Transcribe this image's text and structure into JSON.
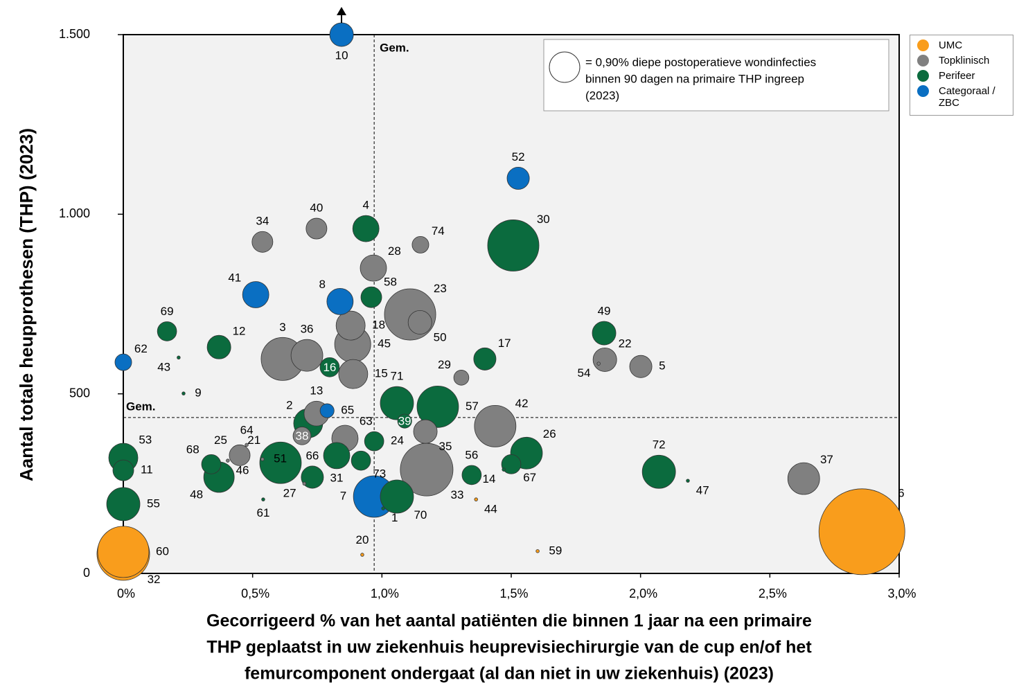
{
  "chart_data": {
    "type": "bubble",
    "xlabel": [
      "Gecorrigeerd % van het aantal patiënten die binnen 1 jaar na een primaire",
      "THP geplaatst in uw ziekenhuis heuprevisiechirurgie van de cup en/of het",
      "femurcomponent ondergaat (al dan niet in uw ziekenhuis) (2023)"
    ],
    "ylabel": "Aantal totale heupprothesen (THP) (2023)",
    "xlim": [
      0,
      3.0
    ],
    "ylim": [
      0,
      1500
    ],
    "xticks": [
      {
        "value": 0,
        "label": "0%"
      },
      {
        "value": 0.5,
        "label": "0,5%"
      },
      {
        "value": 1.0,
        "label": "1,0%"
      },
      {
        "value": 1.5,
        "label": "1,5%"
      },
      {
        "value": 2.0,
        "label": "2,0%"
      },
      {
        "value": 2.5,
        "label": "2,5%"
      },
      {
        "value": 3.0,
        "label": "3,0%"
      }
    ],
    "yticks": [
      0,
      500,
      {
        "value": 1000,
        "label": "1.000"
      },
      {
        "value": 1500,
        "label": "1.500"
      }
    ],
    "mean_x": 0.97,
    "mean_y": 434,
    "mean_label": "Gem.",
    "size_legend": {
      "value": 0.9,
      "text": [
        "= 0,90% diepe postoperatieve wondinfecties",
        "binnen 90 dagen na primaire THP ingreep",
        "(2023)"
      ]
    },
    "series": [
      {
        "name": "UMC",
        "color": "#f99d1c",
        "labels": [
          "6",
          "60",
          "32",
          "20",
          "59",
          "44"
        ],
        "x": [
          2.856,
          0,
          0,
          0.924,
          1.602,
          1.364
        ],
        "y": [
          116,
          60,
          54,
          52,
          62,
          206
        ],
        "sizes": [
          7.15,
          2.55,
          2.69,
          0.01,
          0.01,
          0.01
        ]
      },
      {
        "name": "Topklinisch",
        "color": "#808080",
        "labels": [
          "40",
          "34",
          "74",
          "28",
          "23",
          "50",
          "18",
          "45",
          "3",
          "36",
          "15",
          "29",
          "13",
          "42",
          "35",
          "63",
          "38",
          "25",
          "33",
          "37",
          "22",
          "5",
          "54",
          "64",
          "51",
          "27",
          "46"
        ],
        "x": [
          0.747,
          0.538,
          1.149,
          0.967,
          1.109,
          1.147,
          0.879,
          0.887,
          0.616,
          0.71,
          0.889,
          1.307,
          0.747,
          1.438,
          1.168,
          0.857,
          0.691,
          0.45,
          1.173,
          2.631,
          1.862,
          2.001,
          1.838,
          0.477,
          0.538,
          0.7,
          0.404
        ],
        "y": [
          960,
          923,
          915,
          850,
          721,
          699,
          690,
          638,
          597,
          607,
          555,
          545,
          445,
          410,
          395,
          376,
          383,
          329,
          289,
          264,
          595,
          576,
          584,
          358,
          318,
          250,
          314
        ],
        "sizes": [
          0.42,
          0.42,
          0.27,
          0.67,
          2.55,
          0.54,
          0.82,
          1.26,
          1.79,
          0.98,
          0.82,
          0.22,
          0.6,
          1.67,
          0.54,
          0.67,
          0.31,
          0.42,
          2.69,
          0.98,
          0.54,
          0.48,
          0.01,
          0.01,
          0.01,
          0.01,
          0.01
        ]
      },
      {
        "name": "Perifeer",
        "color": "#0b6b3e",
        "labels": [
          "4",
          "30",
          "58",
          "69",
          "49",
          "12",
          "16",
          "17",
          "71",
          "57",
          "39",
          "2",
          "24",
          "26",
          "53",
          "21",
          "73",
          "31",
          "68",
          "67",
          "11",
          "72",
          "56",
          "48",
          "66",
          "70",
          "55",
          "43",
          "9",
          "61",
          "47",
          "1",
          "14"
        ],
        "x": [
          0.938,
          1.508,
          0.959,
          0.169,
          1.859,
          0.37,
          0.798,
          1.398,
          1.058,
          1.216,
          1.088,
          0.715,
          0.97,
          1.559,
          0,
          0.608,
          0.919,
          0.825,
          0.34,
          1.5,
          0,
          2.071,
          1.347,
          0.37,
          0.731,
          1.058,
          0,
          0.214,
          0.233,
          0.541,
          2.183,
          1.005,
          1.471
        ],
        "y": [
          960,
          913,
          769,
          674,
          669,
          630,
          574,
          597,
          474,
          464,
          424,
          418,
          368,
          335,
          322,
          308,
          314,
          328,
          304,
          304,
          287,
          283,
          274,
          268,
          268,
          214,
          193,
          601,
          501,
          206,
          258,
          181,
          289
        ],
        "sizes": [
          0.67,
          2.55,
          0.42,
          0.36,
          0.54,
          0.54,
          0.36,
          0.48,
          1.07,
          1.67,
          0.19,
          0.82,
          0.36,
          0.98,
          0.82,
          1.67,
          0.36,
          0.67,
          0.36,
          0.36,
          0.42,
          1.07,
          0.36,
          0.9,
          0.48,
          1.07,
          1.07,
          0.01,
          0.01,
          0.01,
          0.01,
          0.01,
          0.01
        ]
      },
      {
        "name": "Categoraal / ZBC",
        "color": "#0a6fc2",
        "labels": [
          "10",
          "52",
          "41",
          "8",
          "62",
          "65",
          "7"
        ],
        "x": [
          0.844,
          1.527,
          0.512,
          0.838,
          0,
          0.788,
          0.97
        ],
        "y": [
          1500,
          1100,
          776,
          757,
          588,
          453,
          214
        ],
        "sizes": [
          0.54,
          0.48,
          0.67,
          0.67,
          0.27,
          0.19,
          1.67
        ]
      }
    ]
  }
}
